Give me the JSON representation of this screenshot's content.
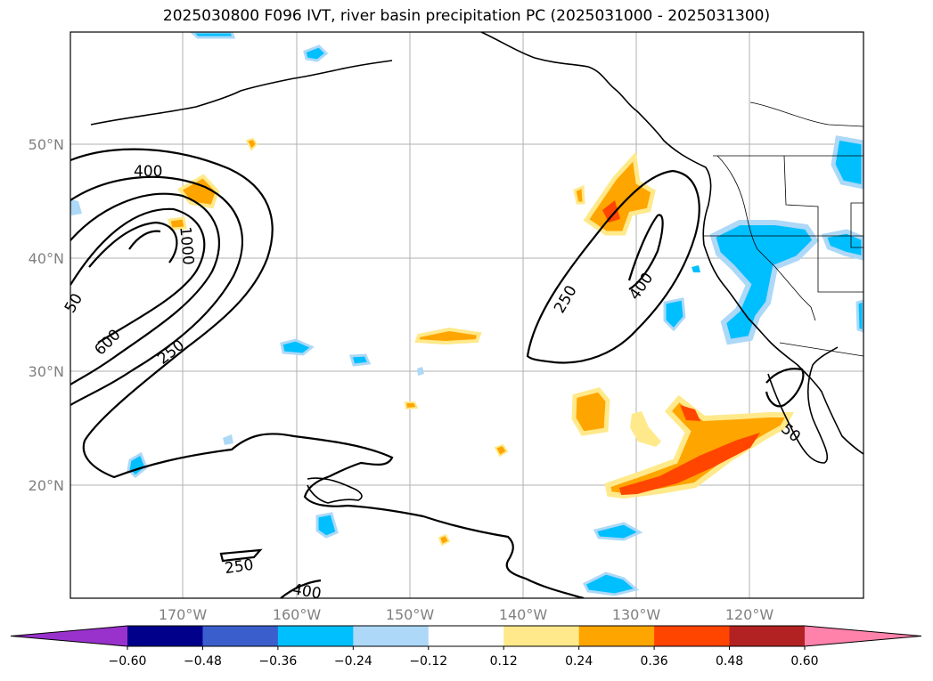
{
  "title": "2025030800 F096 IVT, river basin precipitation PC (2025031000 - 2025031300)",
  "map": {
    "lat_labels": [
      "50°N",
      "40°N",
      "30°N",
      "20°N"
    ],
    "lon_labels": [
      "170°W",
      "160°W",
      "150°W",
      "140°W",
      "130°W",
      "120°W"
    ],
    "contour_labels": [
      "400",
      "1000",
      "600",
      "250",
      "250",
      "400",
      "250",
      "400",
      "50",
      "50"
    ],
    "colors": {
      "gridline": "#b0b0b0",
      "contour": "#000000",
      "coastline": "#000000"
    }
  },
  "colorbar": {
    "tick_labels": [
      "−0.60",
      "−0.48",
      "−0.36",
      "−0.24",
      "−0.12",
      "0.12",
      "0.24",
      "0.36",
      "0.48",
      "0.60"
    ],
    "colors": [
      "#9932cc",
      "#00008b",
      "#3a5fcd",
      "#00bfff",
      "#add8f7",
      "#ffffff",
      "#ffe98a",
      "#ffa500",
      "#ff4500",
      "#b22222",
      "#ff82ab"
    ]
  }
}
